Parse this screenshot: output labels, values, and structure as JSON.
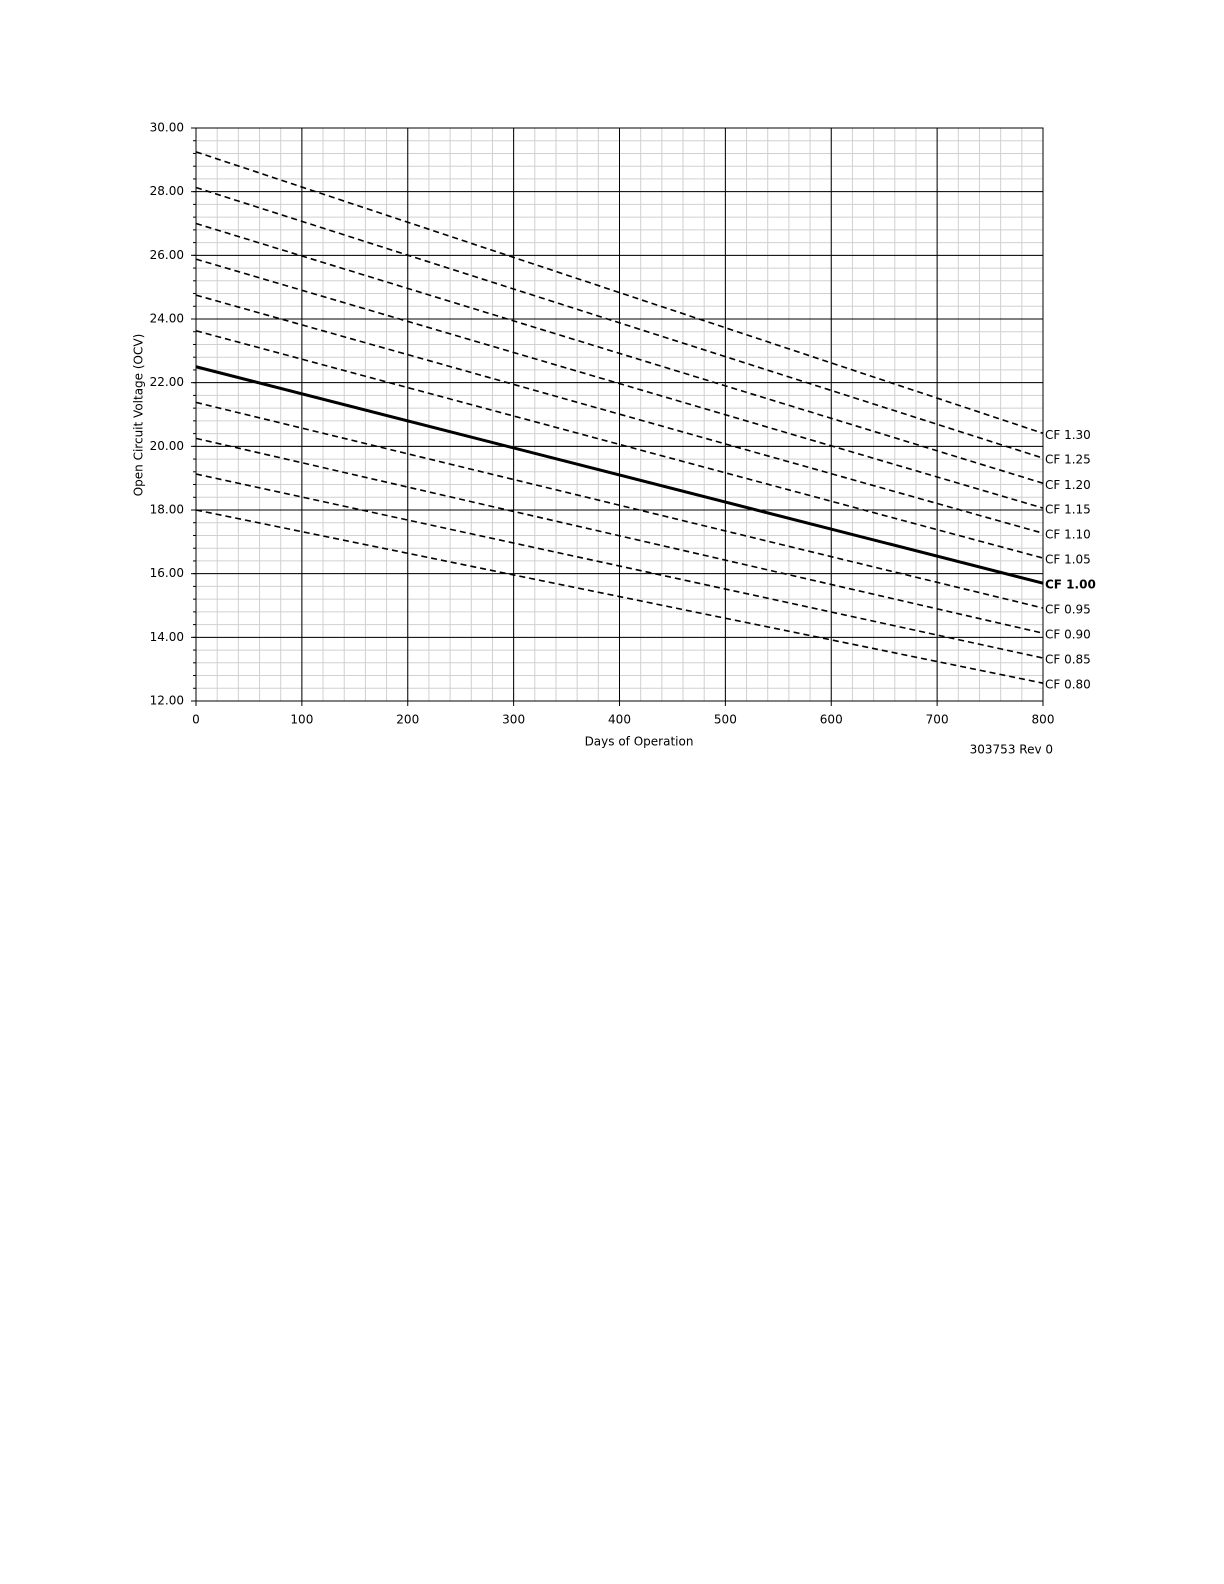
{
  "chart_data": {
    "type": "line",
    "x_label": "Days of Operation",
    "y_label": "Open Circuit Voltage (OCV)",
    "footnote": "303753 Rev 0",
    "x": [
      0,
      800
    ],
    "xlim": [
      0,
      800
    ],
    "xticks": [
      0,
      100,
      200,
      300,
      400,
      500,
      600,
      700,
      800
    ],
    "ylim": [
      12,
      30
    ],
    "yticks": [
      {
        "value": 12,
        "label": "12.00"
      },
      {
        "value": 14,
        "label": "14.00"
      },
      {
        "value": 16,
        "label": "16.00"
      },
      {
        "value": 18,
        "label": "18.00"
      },
      {
        "value": 20,
        "label": "20.00"
      },
      {
        "value": 22,
        "label": "22.00"
      },
      {
        "value": 24,
        "label": "24.00"
      },
      {
        "value": 26,
        "label": "26.00"
      },
      {
        "value": 28,
        "label": "28.00"
      },
      {
        "value": 30,
        "label": "30.00"
      }
    ],
    "grid": true,
    "xminor": 20,
    "yminor": 0.4,
    "series": [
      {
        "name": "CF 1.30",
        "color": "#000000",
        "style": "dashed",
        "values": [
          29.25,
          20.41
        ]
      },
      {
        "name": "CF 1.25",
        "color": "#000000",
        "style": "dashed",
        "values": [
          28.13,
          19.63
        ]
      },
      {
        "name": "CF 1.20",
        "color": "#000000",
        "style": "dashed",
        "values": [
          27.0,
          18.84
        ]
      },
      {
        "name": "CF 1.15",
        "color": "#000000",
        "style": "dashed",
        "values": [
          25.88,
          18.06
        ]
      },
      {
        "name": "CF 1.10",
        "color": "#000000",
        "style": "dashed",
        "values": [
          24.75,
          17.27
        ]
      },
      {
        "name": "CF 1.05",
        "color": "#000000",
        "style": "dashed",
        "values": [
          23.63,
          16.49
        ]
      },
      {
        "name": "CF 1.00",
        "color": "#000000",
        "style": "solid",
        "values": [
          22.5,
          15.7
        ]
      },
      {
        "name": "CF 0.95",
        "color": "#000000",
        "style": "dashed",
        "values": [
          21.38,
          14.92
        ]
      },
      {
        "name": "CF 0.90",
        "color": "#000000",
        "style": "dashed",
        "values": [
          20.25,
          14.13
        ]
      },
      {
        "name": "CF 0.85",
        "color": "#000000",
        "style": "dashed",
        "values": [
          19.13,
          13.35
        ]
      },
      {
        "name": "CF 0.80",
        "color": "#000000",
        "style": "dashed",
        "values": [
          18.0,
          12.56
        ]
      }
    ]
  }
}
